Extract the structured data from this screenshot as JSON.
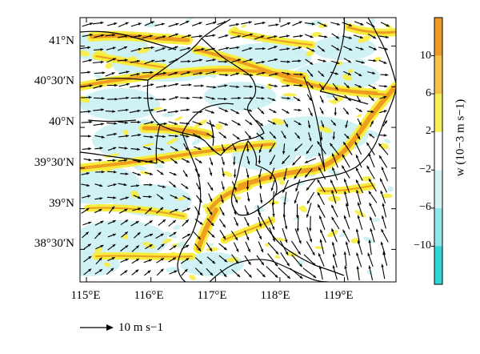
{
  "figure": {
    "lon_ticks": [
      "115°E",
      "116°E",
      "117°E",
      "118°E",
      "119°E"
    ],
    "lat_ticks": [
      "41°N",
      "40°30′N",
      "40°N",
      "39°30′N",
      "39°N",
      "38°30′N"
    ],
    "lon_range_deg": [
      114.9,
      119.8
    ],
    "lat_range_deg": [
      38.1,
      41.35
    ]
  },
  "colorbar": {
    "title": "w (10−3 m s−1)",
    "tick_labels": [
      "10",
      "6",
      "2",
      "−2",
      "−6",
      "−10"
    ],
    "levels": [
      -14,
      -10,
      -6,
      -2,
      2,
      6,
      10,
      14
    ],
    "colors": [
      "#33d6d6",
      "#8ee6e6",
      "#d3f2f2",
      "#ffffff",
      "#f5ef5a",
      "#f2c24a",
      "#ec9a2a"
    ]
  },
  "reference_vector": {
    "label": "10 m s−1",
    "speed_ms": 10
  },
  "colors": {
    "updraft_weak": "#f7ed3f",
    "updraft_strong": "#ef9d1f",
    "downdraft_weak": "#c9f0f2",
    "arrow": "#000000",
    "border": "#000000"
  }
}
